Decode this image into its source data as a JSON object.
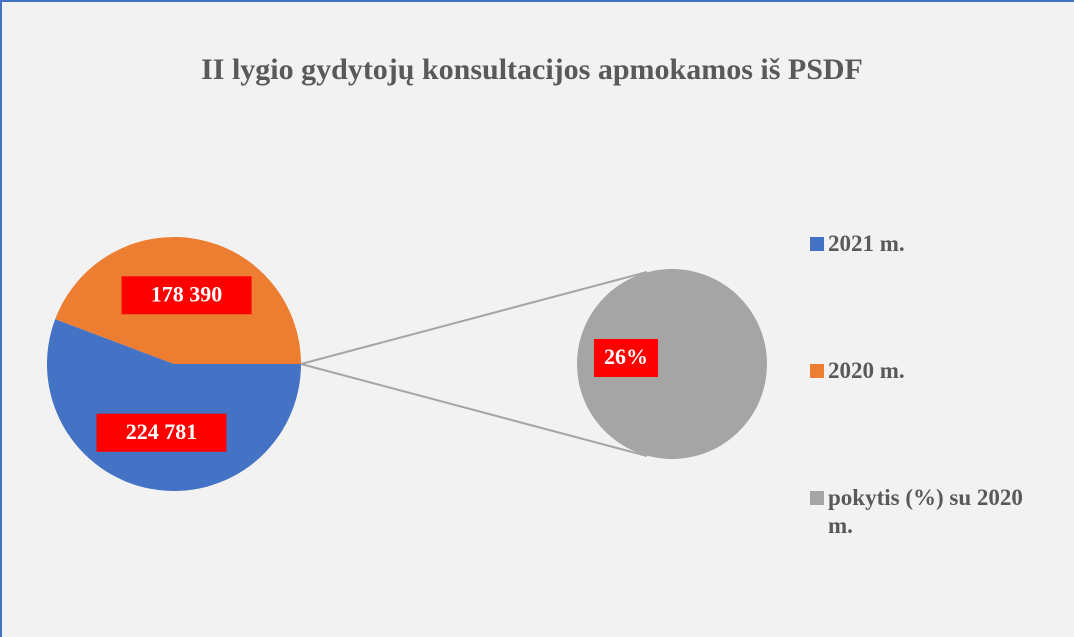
{
  "chart_data": {
    "type": "pie-of-pie",
    "title": "II lygio gydytojų konsultacijos apmokamos iš PSDF",
    "categories": [
      "2021 m.",
      "2020 m.",
      "pokytis (%) su 2020 m."
    ],
    "values": [
      224781,
      178390,
      26
    ],
    "value_labels": [
      "224 781",
      "178 390",
      "26%"
    ],
    "colors": [
      "#4472c4",
      "#ed7d31",
      "#a5a5a5"
    ],
    "legend": "right"
  }
}
